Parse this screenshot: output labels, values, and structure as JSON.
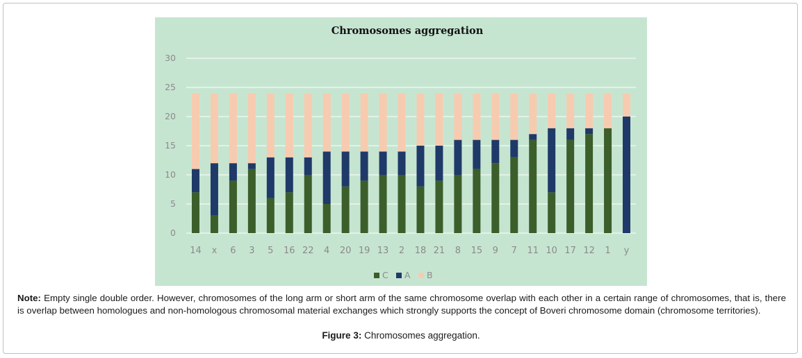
{
  "chart_data": {
    "type": "bar",
    "stacked": true,
    "title": "Chromosomes aggregation",
    "xlabel": "",
    "ylabel": "",
    "ylim": [
      0,
      30
    ],
    "yticks": [
      0,
      5,
      10,
      15,
      20,
      25,
      30
    ],
    "grid": true,
    "legend_position": "bottom",
    "categories": [
      "14",
      "x",
      "6",
      "3",
      "5",
      "16",
      "22",
      "4",
      "20",
      "19",
      "13",
      "2",
      "18",
      "21",
      "8",
      "15",
      "9",
      "7",
      "11",
      "10",
      "17",
      "12",
      "1",
      "y"
    ],
    "series": [
      {
        "name": "C",
        "color": "#3b5e2b",
        "values": [
          7,
          3,
          9,
          11,
          6,
          7,
          10,
          5,
          8,
          9,
          10,
          10,
          8,
          9,
          10,
          11,
          12,
          13,
          16,
          7,
          16,
          17,
          18,
          0
        ]
      },
      {
        "name": "A",
        "color": "#1f3a68",
        "values": [
          4,
          9,
          3,
          1,
          7,
          6,
          3,
          9,
          6,
          5,
          4,
          4,
          7,
          6,
          6,
          5,
          4,
          3,
          1,
          11,
          2,
          1,
          0,
          20
        ]
      },
      {
        "name": "B",
        "color": "#f7cbb0",
        "values": [
          13,
          12,
          12,
          12,
          11,
          11,
          11,
          10,
          10,
          10,
          10,
          10,
          9,
          9,
          8,
          8,
          8,
          8,
          7,
          6,
          6,
          6,
          6,
          4
        ]
      }
    ]
  },
  "colors": {
    "panel_background": "#c6e5d1",
    "gridline": "#ffffff",
    "axis_text": "#8a8a8a",
    "title_text": "#111111"
  },
  "caption": {
    "note_label": "Note:",
    "note_text": " Empty single double order. However, chromosomes of the long arm or short arm of the same chromosome overlap with each other in a certain range of chromosomes, that is, there is overlap between homologues and non-homologous chromosomal material exchanges which strongly supports the concept of Boveri chromosome domain (chromosome territories).",
    "figure_label": "Figure 3:",
    "figure_text": " Chromosomes aggregation."
  }
}
